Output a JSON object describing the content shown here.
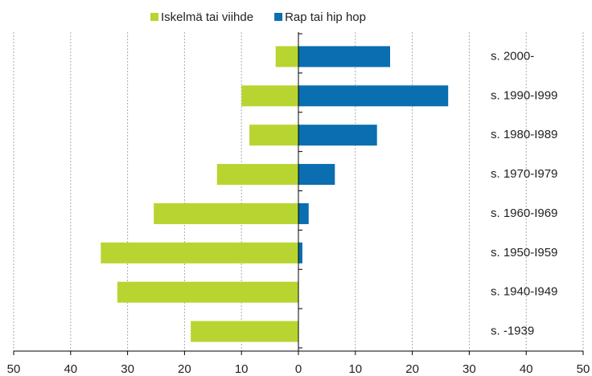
{
  "chart_data": {
    "type": "bar",
    "orientation": "horizontal",
    "categories": [
      "s. 2000-",
      "s. 1990-I999",
      "s. 1980-I989",
      "s. 1970-I979",
      "s. 1960-I969",
      "s. 1950-I959",
      "s. 1940-I949",
      "s. -1939"
    ],
    "series": [
      {
        "name": "Iskelmä tai viihde",
        "color": "#b8d431",
        "values": [
          -4.0,
          -10.0,
          -8.6,
          -14.3,
          -25.4,
          -34.7,
          -31.8,
          -18.9
        ]
      },
      {
        "name": "Rap tai hip hop",
        "color": "#0a6eb0",
        "values": [
          16.1,
          26.3,
          13.8,
          6.4,
          1.8,
          0.7,
          0,
          0
        ]
      }
    ],
    "xlim": [
      -50,
      50
    ],
    "xticks": [
      {
        "value": -50,
        "label": "50"
      },
      {
        "value": -40,
        "label": "40"
      },
      {
        "value": -30,
        "label": "30"
      },
      {
        "value": -20,
        "label": "20"
      },
      {
        "value": -10,
        "label": "10"
      },
      0,
      10,
      20,
      30,
      40,
      50
    ],
    "grid": true,
    "legend": "top"
  }
}
